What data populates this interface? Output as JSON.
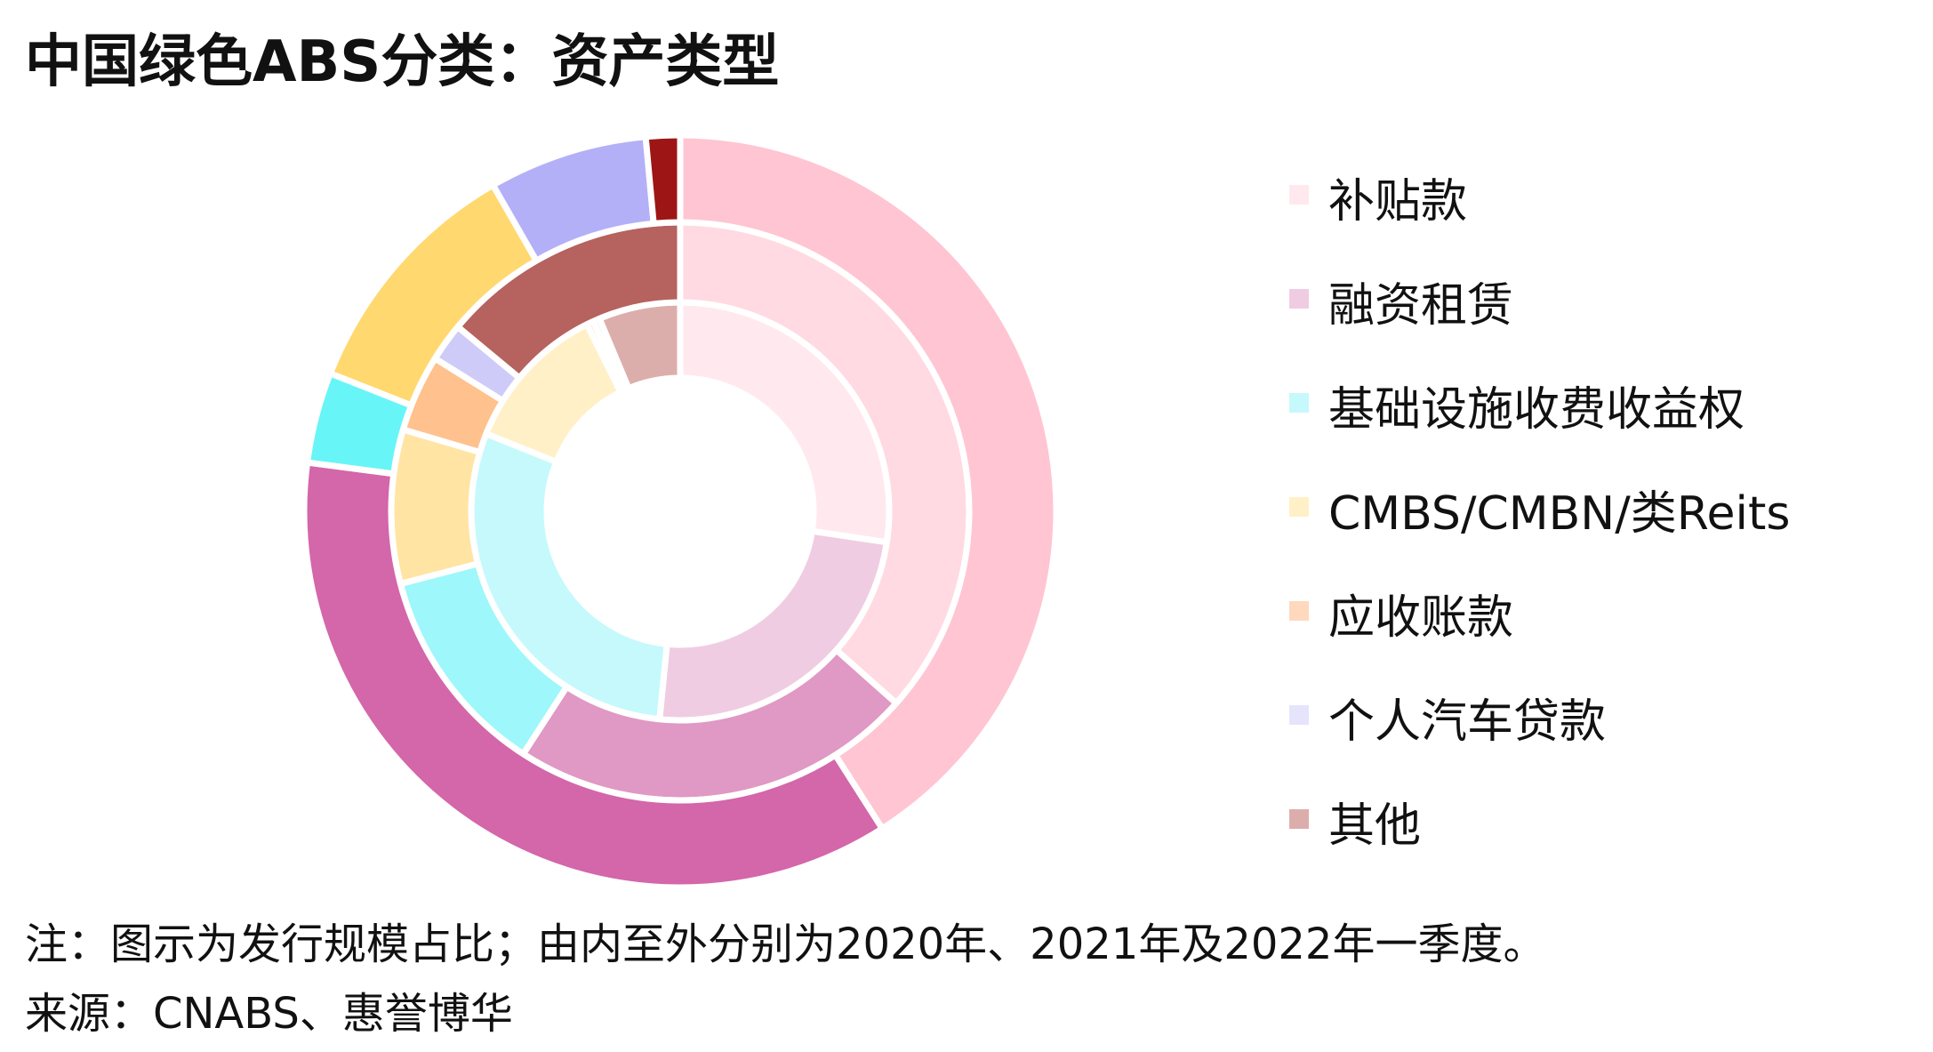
{
  "title": "中国绿色ABS分类：资产类型",
  "note": "注：图示为发行规模占比；由内至外分别为2020年、2021年及2022年一季度。",
  "source": "来源：CNABS、惠誉博华",
  "chart_data": {
    "type": "pie",
    "variant": "nested-donut",
    "categories": [
      "补贴款",
      "融资租赁",
      "基础设施收费收益权",
      "CMBS/CMBN/类Reits",
      "应收账款",
      "个人汽车贷款",
      "其他"
    ],
    "colors": {
      "outer": [
        "#ffc5d2",
        "#d466aa",
        "#68f5f7",
        "#ffd870",
        "#ffbb88",
        "#b3b0f8",
        "#9e1515"
      ],
      "middle": [
        "#ffdae2",
        "#e098c4",
        "#9ef7fa",
        "#ffe4a4",
        "#ffc18e",
        "#cfcbf9",
        "#b6625e"
      ],
      "inner": [
        "#ffe9ee",
        "#f0cce2",
        "#c6f9fb",
        "#fff0c8",
        "#ffd9bd",
        "#e6e4fc",
        "#dcaeab"
      ]
    },
    "legend_colors": [
      "#ffe9ee",
      "#f0cce2",
      "#c6f9fb",
      "#fff0c8",
      "#ffd9bd",
      "#e6e4fc",
      "#dcaeab"
    ],
    "series": [
      {
        "name": "2020年",
        "values": [
          26,
          23,
          28,
          11,
          0.5,
          0.5,
          6
        ]
      },
      {
        "name": "2021年",
        "values": [
          34,
          21,
          11,
          8,
          4,
          2,
          13
        ]
      },
      {
        "name": "2022年一季度",
        "values": [
          42,
          37,
          4,
          11,
          0,
          7,
          1.5
        ]
      }
    ],
    "legend_position": "right"
  }
}
